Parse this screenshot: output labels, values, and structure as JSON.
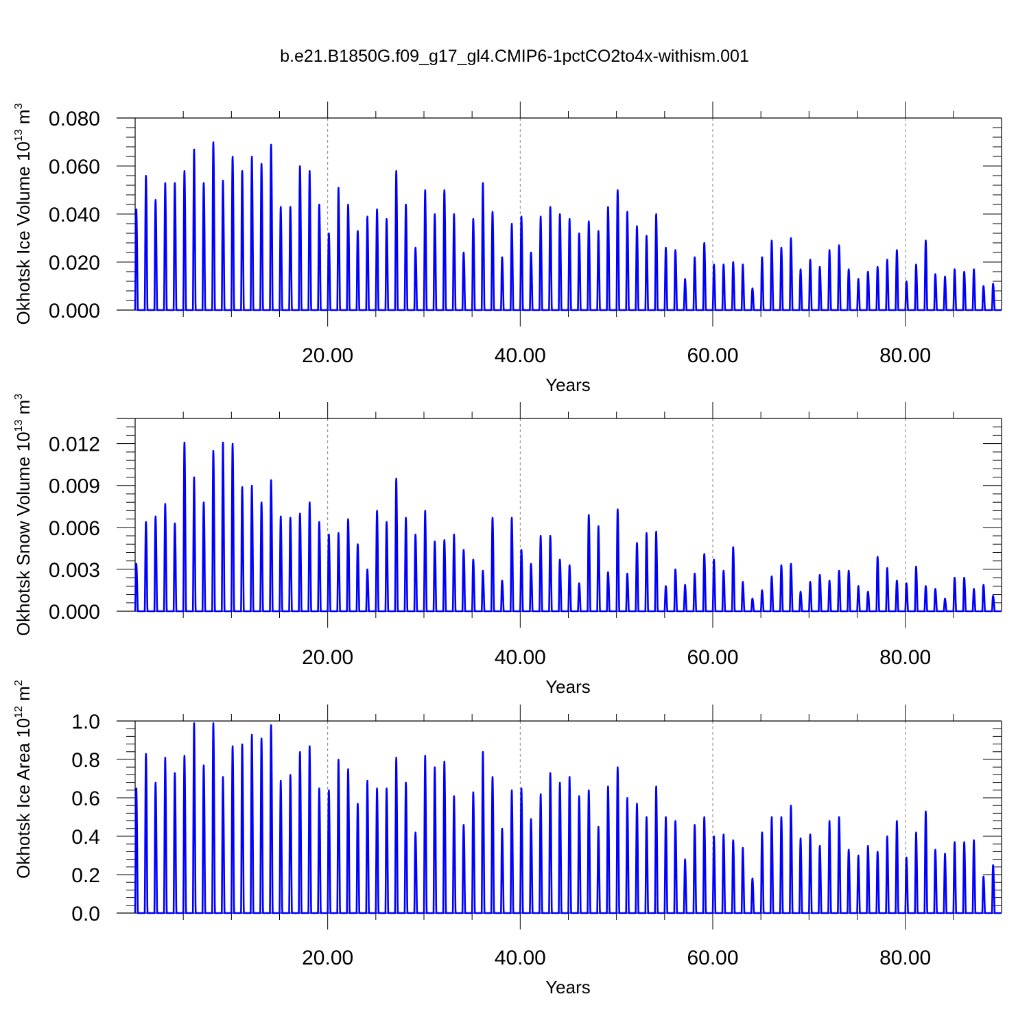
{
  "title": "b.e21.B1850G.f09_g17_gl4.CMIP6-1pctCO2to4x-withism.001",
  "colors": {
    "series": "#0000ff",
    "axes": "#000000",
    "grid": "#808080"
  },
  "chart_data": [
    {
      "type": "line",
      "id": "ice-volume",
      "ylabel": "Okhotsk Ice Volume 10",
      "ylabel_exp": "13",
      "ylabel_unit": " m",
      "ylabel_unit_exp": "3",
      "xlabel": "Years",
      "xlim": [
        0,
        90
      ],
      "ylim": [
        0,
        0.08
      ],
      "xticks": [
        20,
        40,
        60,
        80
      ],
      "xtick_labels": [
        "20.00",
        "40.00",
        "60.00",
        "80.00"
      ],
      "yticks": [
        0,
        0.02,
        0.04,
        0.06,
        0.08
      ],
      "ytick_labels": [
        "0.000",
        "0.020",
        "0.040",
        "0.060",
        "0.080"
      ],
      "grid": "vertical dashed at major x ticks",
      "series": [
        {
          "start": 0.0,
          "peak_offset": 0.12,
          "annual_peaks": [
            0.042,
            0.056,
            0.046,
            0.053,
            0.053,
            0.058,
            0.067,
            0.053,
            0.07,
            0.054,
            0.064,
            0.058,
            0.064,
            0.061,
            0.069,
            0.043,
            0.043,
            0.06,
            0.058,
            0.044,
            0.032,
            0.051,
            0.044,
            0.033,
            0.039,
            0.042,
            0.038,
            0.058,
            0.044,
            0.026,
            0.05,
            0.04,
            0.05,
            0.04,
            0.024,
            0.038,
            0.053,
            0.041,
            0.022,
            0.036,
            0.039,
            0.024,
            0.039,
            0.043,
            0.04,
            0.038,
            0.032,
            0.037,
            0.033,
            0.043,
            0.05,
            0.041,
            0.035,
            0.031,
            0.04,
            0.026,
            0.025,
            0.013,
            0.022,
            0.028,
            0.019,
            0.019,
            0.02,
            0.019,
            0.009,
            0.022,
            0.029,
            0.026,
            0.03,
            0.017,
            0.021,
            0.018,
            0.025,
            0.027,
            0.017,
            0.013,
            0.016,
            0.018,
            0.021,
            0.025,
            0.012,
            0.019,
            0.029,
            0.015,
            0.014,
            0.017,
            0.016,
            0.017,
            0.01,
            0.011
          ]
        }
      ]
    },
    {
      "type": "line",
      "id": "snow-volume",
      "ylabel": "Okhotsk Snow Volume 10",
      "ylabel_exp": "13",
      "ylabel_unit": " m",
      "ylabel_unit_exp": "3",
      "xlabel": "Years",
      "xlim": [
        0,
        90
      ],
      "ylim": [
        0,
        0.0138
      ],
      "xticks": [
        20,
        40,
        60,
        80
      ],
      "xtick_labels": [
        "20.00",
        "40.00",
        "60.00",
        "80.00"
      ],
      "yticks": [
        0,
        0.003,
        0.006,
        0.009,
        0.012
      ],
      "ytick_labels": [
        "0.000",
        "0.003",
        "0.006",
        "0.009",
        "0.012"
      ],
      "grid": "vertical dashed at major x ticks",
      "series": [
        {
          "start": 0.0,
          "peak_offset": 0.12,
          "annual_peaks": [
            0.0034,
            0.0064,
            0.0068,
            0.0077,
            0.0063,
            0.0121,
            0.0096,
            0.0078,
            0.0115,
            0.0121,
            0.012,
            0.0089,
            0.009,
            0.0078,
            0.0094,
            0.0068,
            0.0067,
            0.007,
            0.0078,
            0.0064,
            0.0055,
            0.0056,
            0.0066,
            0.0048,
            0.003,
            0.0072,
            0.0064,
            0.0095,
            0.0067,
            0.0055,
            0.0072,
            0.005,
            0.0051,
            0.0055,
            0.0044,
            0.0037,
            0.0029,
            0.0067,
            0.0022,
            0.0067,
            0.0044,
            0.0034,
            0.0054,
            0.0054,
            0.0037,
            0.0033,
            0.002,
            0.0069,
            0.0061,
            0.0028,
            0.0073,
            0.0027,
            0.0049,
            0.0056,
            0.0057,
            0.0018,
            0.003,
            0.0019,
            0.0027,
            0.0041,
            0.0037,
            0.0029,
            0.0046,
            0.0021,
            0.0009,
            0.0015,
            0.0025,
            0.0033,
            0.0034,
            0.0014,
            0.0021,
            0.0026,
            0.0022,
            0.0029,
            0.0029,
            0.0018,
            0.0014,
            0.0039,
            0.0031,
            0.0022,
            0.002,
            0.0032,
            0.0018,
            0.0016,
            0.0009,
            0.0024,
            0.0024,
            0.0016,
            0.0019,
            0.0011
          ]
        }
      ]
    },
    {
      "type": "line",
      "id": "ice-area",
      "ylabel": "Okhotsk Ice Area 10",
      "ylabel_exp": "12",
      "ylabel_unit": " m",
      "ylabel_unit_exp": "2",
      "xlabel": "Years",
      "xlim": [
        0,
        90
      ],
      "ylim": [
        0,
        1.0
      ],
      "xticks": [
        20,
        40,
        60,
        80
      ],
      "xtick_labels": [
        "20.00",
        "40.00",
        "60.00",
        "80.00"
      ],
      "yticks": [
        0,
        0.2,
        0.4,
        0.6,
        0.8,
        1.0
      ],
      "ytick_labels": [
        "0.0",
        "0.2",
        "0.4",
        "0.6",
        "0.8",
        "1.0"
      ],
      "grid": "vertical dashed at major x ticks",
      "series": [
        {
          "start": 0.28,
          "peak_offset": 0.12,
          "annual_peaks": [
            0.65,
            0.83,
            0.68,
            0.81,
            0.73,
            0.82,
            0.99,
            0.77,
            0.99,
            0.71,
            0.87,
            0.88,
            0.93,
            0.91,
            0.98,
            0.69,
            0.72,
            0.84,
            0.87,
            0.65,
            0.64,
            0.8,
            0.75,
            0.57,
            0.69,
            0.65,
            0.65,
            0.81,
            0.68,
            0.42,
            0.82,
            0.76,
            0.79,
            0.61,
            0.46,
            0.63,
            0.84,
            0.71,
            0.44,
            0.64,
            0.65,
            0.49,
            0.62,
            0.73,
            0.68,
            0.71,
            0.61,
            0.64,
            0.45,
            0.66,
            0.76,
            0.6,
            0.57,
            0.5,
            0.66,
            0.5,
            0.48,
            0.28,
            0.46,
            0.5,
            0.4,
            0.41,
            0.38,
            0.34,
            0.18,
            0.42,
            0.5,
            0.5,
            0.56,
            0.39,
            0.41,
            0.35,
            0.48,
            0.5,
            0.33,
            0.3,
            0.35,
            0.32,
            0.4,
            0.48,
            0.29,
            0.42,
            0.53,
            0.33,
            0.31,
            0.37,
            0.37,
            0.38,
            0.19,
            0.25
          ]
        }
      ]
    }
  ]
}
